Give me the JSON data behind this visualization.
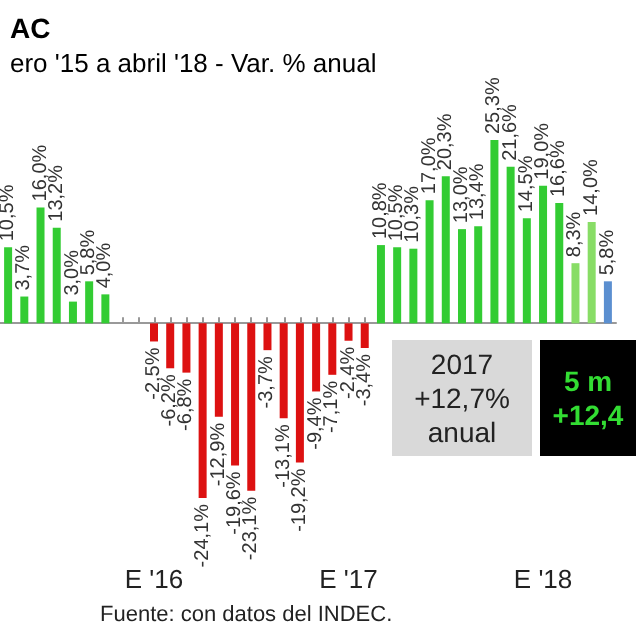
{
  "chart_data": {
    "type": "bar",
    "title": "AC",
    "subtitle": "ero '15 a abril '18 - Var. % anual",
    "categories": [
      null,
      null,
      null,
      null,
      null,
      null,
      null,
      null,
      null,
      "E '16",
      null,
      null,
      null,
      null,
      null,
      null,
      null,
      null,
      null,
      null,
      null,
      "E '17",
      null,
      null,
      null,
      null,
      null,
      null,
      null,
      null,
      null,
      null,
      null,
      "E '18",
      null,
      null,
      null,
      null
    ],
    "values": [
      10.5,
      3.7,
      16.0,
      13.2,
      3.0,
      5.8,
      4.0,
      null,
      null,
      -2.5,
      -6.2,
      -6.8,
      -24.1,
      -12.9,
      -19.6,
      -23.1,
      -3.7,
      -13.1,
      -19.2,
      -9.4,
      -7.1,
      -2.4,
      -3.4,
      10.8,
      10.5,
      10.3,
      17.0,
      20.3,
      13.0,
      13.4,
      25.3,
      21.6,
      14.5,
      19.0,
      16.6,
      8.3,
      14.0,
      5.8
    ],
    "value_labels": [
      "10,5%",
      "3,7%",
      "16,0%",
      "13,2%",
      "3,0%",
      "5,8%",
      "4,0%",
      null,
      null,
      "-2,5%",
      "-6,2%",
      "-6,8%",
      "-24,1%",
      "-12,9%",
      "-19,6%",
      "-23,1%",
      "-3,7%",
      "-13,1%",
      "-19,2%",
      "-9,4%",
      "-7,1%",
      "-2,4%",
      "-3,4%",
      "10,8%",
      "10,5%",
      "10,3%",
      "17,0%",
      "20,3%",
      "13,0%",
      "13,4%",
      "25,3%",
      "21,6%",
      "14,5%",
      "19,0%",
      "16,6%",
      "8,3%",
      "14,0%",
      "5,8%"
    ],
    "colors": [
      "#33cc33",
      "#33cc33",
      "#33cc33",
      "#33cc33",
      "#33cc33",
      "#33cc33",
      "#33cc33",
      "#33cc33",
      "#33cc33",
      "#dd1111",
      "#dd1111",
      "#dd1111",
      "#dd1111",
      "#dd1111",
      "#dd1111",
      "#dd1111",
      "#dd1111",
      "#dd1111",
      "#dd1111",
      "#dd1111",
      "#dd1111",
      "#dd1111",
      "#dd1111",
      "#33cc33",
      "#33cc33",
      "#33cc33",
      "#33cc33",
      "#33cc33",
      "#33cc33",
      "#33cc33",
      "#33cc33",
      "#33cc33",
      "#33cc33",
      "#33cc33",
      "#33cc33",
      "#88dd66",
      "#88dd66",
      "#5b8fd0"
    ],
    "annotations": [
      "2017\n+12,7%\nanual",
      "5 m\n+12,4",
      "Fuente: con datos del INDEC."
    ]
  }
}
